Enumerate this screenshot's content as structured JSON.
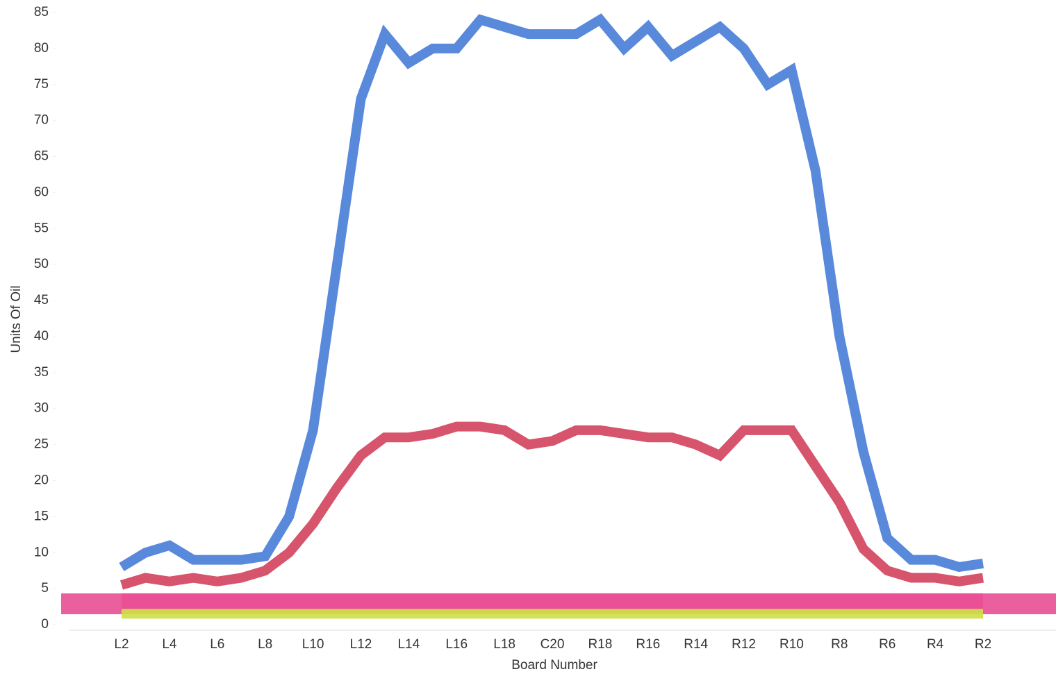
{
  "chart_data": {
    "type": "line",
    "x_label": "Board Number",
    "y_label": "Units Of Oil",
    "categories": [
      "L2",
      null,
      "L4",
      null,
      "L6",
      null,
      "L8",
      null,
      "L10",
      null,
      "L12",
      null,
      "L14",
      null,
      "L16",
      null,
      "L18",
      null,
      "C20",
      null,
      "R18",
      null,
      "R16",
      null,
      "R14",
      null,
      "R12",
      null,
      "R10",
      null,
      "R8",
      null,
      "R6",
      null,
      "R4",
      null,
      "R2"
    ],
    "ylim": [
      0,
      85
    ],
    "yticks": [
      0,
      5,
      10,
      15,
      20,
      25,
      30,
      35,
      40,
      45,
      50,
      55,
      60,
      65,
      70,
      75,
      80,
      85
    ],
    "series": [
      {
        "color": "#e84f95",
        "values": [
          3,
          3,
          3,
          3,
          3,
          3,
          3,
          3,
          3,
          3,
          3,
          3,
          3,
          3,
          3,
          3,
          3,
          3,
          3,
          3,
          3,
          3,
          3,
          3,
          3,
          3,
          3,
          3,
          3,
          3,
          3,
          3,
          3,
          3,
          3,
          3,
          3
        ]
      },
      {
        "color": "#cfe04a",
        "values": [
          1.5,
          1.5,
          1.5,
          1.5,
          1.5,
          1.5,
          1.5,
          1.5,
          1.5,
          1.5,
          1.5,
          1.5,
          1.5,
          1.5,
          1.5,
          1.5,
          1.5,
          1.5,
          1.5,
          1.5,
          1.5,
          1.5,
          1.5,
          1.5,
          1.5,
          1.5,
          1.5,
          1.5,
          1.5,
          1.5,
          1.5,
          1.5,
          1.5,
          1.5,
          1.5,
          1.5,
          1.5
        ]
      },
      {
        "color": "#d3455f",
        "values": [
          5.5,
          6.5,
          6,
          6.5,
          6,
          6.5,
          7.5,
          10,
          14,
          19,
          23.5,
          26,
          26,
          26.5,
          27.5,
          27.5,
          27,
          25,
          25.5,
          27,
          27,
          26.5,
          26,
          26,
          25,
          23.5,
          27,
          27,
          27,
          22,
          17,
          10.5,
          7.5,
          6.5,
          6.5,
          6,
          6.5
        ]
      },
      {
        "color": "#4a7fd8",
        "values": [
          8,
          10,
          11,
          9,
          9,
          9,
          9.5,
          15,
          27,
          50,
          73,
          82,
          78,
          80,
          80,
          84,
          83,
          82,
          82,
          82,
          84,
          80,
          83,
          79,
          81,
          83,
          80,
          75,
          77,
          63,
          40,
          24,
          12,
          9,
          9,
          8,
          8.5
        ]
      }
    ]
  }
}
